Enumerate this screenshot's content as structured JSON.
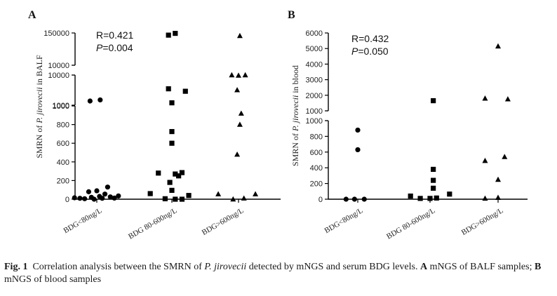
{
  "caption": {
    "fig_label": "Fig. 1",
    "text_before": "Correlation analysis between the SMRN of",
    "organism": "P. jirovecii",
    "text_after": "detected by mNGS and serum BDG levels.",
    "panel_a_letter": "A",
    "panel_a_desc": "mNGS of BALF",
    "panel_b_sep": "samples;",
    "panel_b_letter": "B",
    "panel_b_desc": "mNGS of blood samples"
  },
  "chart_data": [
    {
      "type": "scatter",
      "panel_label": "A",
      "title": "",
      "ylabel_prefix": "SMRN of",
      "ylabel_italic": "P. jirovecii",
      "ylabel_suffix": "in BALF",
      "xlabel": "",
      "stats": {
        "r": "R=0.421",
        "p_symbol": "P",
        "p_value": "=0.004"
      },
      "categories": [
        "BDG<80ng/L",
        "BDG 80-600ng/L",
        "BDG>600ng/L"
      ],
      "markers": [
        "circle",
        "square",
        "triangle"
      ],
      "y_segments": [
        {
          "range": [
            0,
            1000
          ],
          "ticks": [
            0,
            200,
            400,
            600,
            800,
            1000
          ],
          "tick_labels": [
            "0",
            "200",
            "400",
            "600",
            "800",
            "1000"
          ]
        },
        {
          "range": [
            1000,
            10000
          ],
          "scale": "log",
          "ticks": [
            1000,
            10000
          ],
          "tick_labels": [
            "1000",
            "10000"
          ]
        },
        {
          "range": [
            10000,
            150000
          ],
          "scale": "log",
          "ticks": [
            10000,
            150000
          ],
          "tick_labels": [
            "10000",
            "150000"
          ]
        }
      ],
      "series": [
        {
          "name": "BDG<80ng/L",
          "marker": "circle",
          "points": [
            [
              -0.33,
              15
            ],
            [
              -0.25,
              10
            ],
            [
              -0.18,
              5
            ],
            [
              -0.12,
              80
            ],
            [
              -0.08,
              20
            ],
            [
              -0.04,
              0
            ],
            [
              0.0,
              90
            ],
            [
              0.04,
              30
            ],
            [
              0.08,
              10
            ],
            [
              0.12,
              55
            ],
            [
              0.16,
              130
            ],
            [
              0.2,
              25
            ],
            [
              0.26,
              12
            ],
            [
              0.32,
              35
            ],
            [
              -0.1,
              1380
            ],
            [
              0.05,
              1500
            ]
          ]
        },
        {
          "name": "BDG 80-600ng/L",
          "marker": "square",
          "points": [
            [
              -0.32,
              60
            ],
            [
              -0.2,
              280
            ],
            [
              -0.1,
              5
            ],
            [
              -0.03,
              180
            ],
            [
              0.0,
              95
            ],
            [
              0.05,
              270
            ],
            [
              0.1,
              250
            ],
            [
              0.15,
              285
            ],
            [
              0.25,
              40
            ],
            [
              0.15,
              0
            ],
            [
              0.05,
              0
            ],
            [
              0.0,
              600
            ],
            [
              0.0,
              725
            ],
            [
              0.0,
              1200
            ],
            [
              0.2,
              2900
            ],
            [
              -0.05,
              3500
            ],
            [
              -0.05,
              125000
            ],
            [
              0.05,
              145000
            ]
          ]
        },
        {
          "name": "BDG>600ng/L",
          "marker": "triangle",
          "points": [
            [
              -0.3,
              55
            ],
            [
              -0.08,
              0
            ],
            [
              -0.02,
              480
            ],
            [
              0.02,
              800
            ],
            [
              0.04,
              920
            ],
            [
              0.08,
              10
            ],
            [
              0.25,
              55
            ],
            [
              -0.02,
              3200
            ],
            [
              -0.1,
              10000
            ],
            [
              0.0,
              9700
            ],
            [
              0.1,
              10000
            ],
            [
              0.02,
              118000
            ]
          ]
        }
      ]
    },
    {
      "type": "scatter",
      "panel_label": "B",
      "title": "",
      "ylabel_prefix": "SMRN of",
      "ylabel_italic": "P. jirovecii",
      "ylabel_suffix": "in blood",
      "xlabel": "",
      "stats": {
        "r": "R=0.432",
        "p_symbol": "P",
        "p_value": "=0.050"
      },
      "categories": [
        "BDG<80ng/L",
        "BDG 80-600ng/L",
        "BDG>600ng/L"
      ],
      "markers": [
        "circle",
        "square",
        "triangle"
      ],
      "y_segments": [
        {
          "range": [
            0,
            1000
          ],
          "ticks": [
            0,
            200,
            400,
            600,
            800,
            1000
          ],
          "tick_labels": [
            "0",
            "200",
            "400",
            "600",
            "800",
            "1000"
          ]
        },
        {
          "range": [
            1000,
            6000
          ],
          "ticks": [
            1000,
            2000,
            3000,
            4000,
            5000,
            6000
          ],
          "tick_labels": [
            "1000",
            "2000",
            "3000",
            "4000",
            "5000",
            "6000"
          ]
        }
      ],
      "series": [
        {
          "name": "BDG<80ng/L",
          "marker": "circle",
          "points": [
            [
              -0.18,
              0
            ],
            [
              -0.05,
              0
            ],
            [
              0.1,
              0
            ],
            [
              0.0,
              630
            ],
            [
              0.0,
              880
            ]
          ]
        },
        {
          "name": "BDG 80-600ng/L",
          "marker": "square",
          "points": [
            [
              -0.3,
              40
            ],
            [
              -0.15,
              10
            ],
            [
              0.0,
              10
            ],
            [
              0.1,
              15
            ],
            [
              0.3,
              65
            ],
            [
              0.05,
              140
            ],
            [
              0.05,
              240
            ],
            [
              0.05,
              380
            ],
            [
              0.05,
              1650
            ]
          ]
        },
        {
          "name": "BDG>600ng/L",
          "marker": "triangle",
          "points": [
            [
              -0.2,
              10
            ],
            [
              0.0,
              20
            ],
            [
              -0.2,
              490
            ],
            [
              0.1,
              540
            ],
            [
              0.0,
              250
            ],
            [
              -0.2,
              1800
            ],
            [
              0.15,
              1750
            ],
            [
              0.0,
              5150
            ]
          ]
        }
      ]
    }
  ]
}
